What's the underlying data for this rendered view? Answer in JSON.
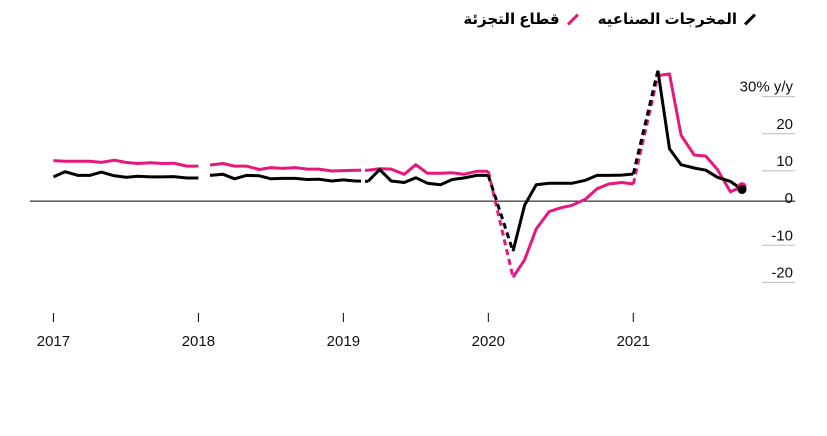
{
  "chart_data": {
    "type": "line",
    "legend": [
      {
        "label": "المخرجات الصناعيه",
        "color": "#000000"
      },
      {
        "label": "قطاع التجزئة",
        "color": "#e8177e"
      }
    ],
    "y_ticks": [
      {
        "value": 30,
        "label": "30% y/y"
      },
      {
        "value": 20,
        "label": "20"
      },
      {
        "value": 10,
        "label": "10"
      },
      {
        "value": 0,
        "label": "0"
      },
      {
        "value": -10,
        "label": "-10"
      },
      {
        "value": -20,
        "label": "-20"
      }
    ],
    "x_ticks": [
      {
        "value": 2017.0,
        "label": "2017"
      },
      {
        "value": 2018.0,
        "label": "2018"
      },
      {
        "value": 2019.0,
        "label": "2019"
      },
      {
        "value": 2020.0,
        "label": "2020"
      },
      {
        "value": 2021.0,
        "label": "2021"
      }
    ],
    "xlim": [
      2016.99,
      2021.75
    ],
    "ylim": [
      -25,
      35
    ],
    "series": [
      {
        "name": "المخرجات الصناعيه",
        "color": "#000000",
        "segments": [
          {
            "style": "solid",
            "points": [
              [
                2017.0,
                6.5
              ],
              [
                2017.08,
                7.9
              ],
              [
                2017.17,
                6.9
              ],
              [
                2017.25,
                6.9
              ],
              [
                2017.33,
                7.8
              ],
              [
                2017.42,
                6.8
              ],
              [
                2017.5,
                6.4
              ],
              [
                2017.58,
                6.7
              ],
              [
                2017.67,
                6.5
              ],
              [
                2017.75,
                6.5
              ],
              [
                2017.83,
                6.6
              ],
              [
                2017.92,
                6.2
              ],
              [
                2018.0,
                6.2
              ]
            ]
          },
          {
            "style": "solid",
            "points": [
              [
                2018.08,
                6.9
              ],
              [
                2018.17,
                7.2
              ],
              [
                2018.25,
                6.0
              ],
              [
                2018.33,
                6.9
              ],
              [
                2018.42,
                6.8
              ],
              [
                2018.5,
                6.0
              ],
              [
                2018.58,
                6.1
              ],
              [
                2018.67,
                6.1
              ],
              [
                2018.75,
                5.8
              ],
              [
                2018.83,
                5.9
              ],
              [
                2018.92,
                5.4
              ],
              [
                2019.0,
                5.7
              ],
              [
                2019.08,
                5.4
              ]
            ]
          },
          {
            "style": "dashed",
            "points": [
              [
                2019.08,
                5.4
              ],
              [
                2019.17,
                5.3
              ]
            ]
          },
          {
            "style": "solid",
            "points": [
              [
                2019.17,
                5.3
              ],
              [
                2019.25,
                8.5
              ],
              [
                2019.33,
                5.4
              ],
              [
                2019.42,
                5.0
              ],
              [
                2019.5,
                6.3
              ],
              [
                2019.58,
                4.8
              ],
              [
                2019.67,
                4.4
              ],
              [
                2019.75,
                5.8
              ],
              [
                2019.83,
                6.2
              ],
              [
                2019.92,
                6.9
              ],
              [
                2020.0,
                6.9
              ]
            ]
          },
          {
            "style": "dashed",
            "points": [
              [
                2020.0,
                6.9
              ],
              [
                2020.17,
                -13.5
              ]
            ]
          },
          {
            "style": "solid",
            "points": [
              [
                2020.17,
                -13.5
              ],
              [
                2020.25,
                -1.1
              ],
              [
                2020.33,
                4.4
              ],
              [
                2020.42,
                4.8
              ],
              [
                2020.5,
                4.8
              ],
              [
                2020.58,
                4.8
              ],
              [
                2020.67,
                5.6
              ],
              [
                2020.75,
                6.9
              ],
              [
                2020.83,
                6.9
              ],
              [
                2020.92,
                7.0
              ],
              [
                2021.0,
                7.3
              ]
            ]
          },
          {
            "style": "dashed",
            "points": [
              [
                2021.0,
                7.3
              ],
              [
                2021.17,
                35.1
              ]
            ]
          },
          {
            "style": "solid",
            "points": [
              [
                2021.17,
                35.1
              ],
              [
                2021.25,
                14.1
              ],
              [
                2021.33,
                9.8
              ],
              [
                2021.42,
                8.9
              ],
              [
                2021.5,
                8.3
              ],
              [
                2021.58,
                6.4
              ],
              [
                2021.67,
                5.3
              ],
              [
                2021.75,
                3.1
              ]
            ]
          }
        ]
      },
      {
        "name": "قطاع التجزئة",
        "color": "#e8177e",
        "segments": [
          {
            "style": "solid",
            "points": [
              [
                2017.0,
                10.9
              ],
              [
                2017.08,
                10.7
              ],
              [
                2017.17,
                10.7
              ],
              [
                2017.25,
                10.7
              ],
              [
                2017.33,
                10.4
              ],
              [
                2017.42,
                11.0
              ],
              [
                2017.5,
                10.4
              ],
              [
                2017.58,
                10.1
              ],
              [
                2017.67,
                10.3
              ],
              [
                2017.75,
                10.1
              ],
              [
                2017.83,
                10.2
              ],
              [
                2017.92,
                9.4
              ],
              [
                2018.0,
                9.4
              ]
            ]
          },
          {
            "style": "solid",
            "points": [
              [
                2018.08,
                9.7
              ],
              [
                2018.17,
                10.1
              ],
              [
                2018.25,
                9.4
              ],
              [
                2018.33,
                9.4
              ],
              [
                2018.42,
                8.5
              ],
              [
                2018.5,
                9.0
              ],
              [
                2018.58,
                8.8
              ],
              [
                2018.67,
                9.0
              ],
              [
                2018.75,
                8.6
              ],
              [
                2018.83,
                8.6
              ],
              [
                2018.92,
                8.1
              ],
              [
                2019.0,
                8.2
              ],
              [
                2019.08,
                8.3
              ]
            ]
          },
          {
            "style": "dashed",
            "points": [
              [
                2019.08,
                8.3
              ],
              [
                2019.17,
                8.3
              ]
            ]
          },
          {
            "style": "solid",
            "points": [
              [
                2019.17,
                8.3
              ],
              [
                2019.25,
                8.7
              ],
              [
                2019.33,
                8.6
              ],
              [
                2019.42,
                7.2
              ],
              [
                2019.5,
                9.8
              ],
              [
                2019.58,
                7.5
              ],
              [
                2019.67,
                7.5
              ],
              [
                2019.75,
                7.6
              ],
              [
                2019.83,
                7.2
              ],
              [
                2019.92,
                8.0
              ],
              [
                2020.0,
                8.0
              ]
            ]
          },
          {
            "style": "dashed",
            "points": [
              [
                2020.0,
                8.0
              ],
              [
                2020.17,
                -20.5
              ]
            ]
          },
          {
            "style": "solid",
            "points": [
              [
                2020.17,
                -20.5
              ],
              [
                2020.25,
                -15.8
              ],
              [
                2020.33,
                -7.5
              ],
              [
                2020.42,
                -2.8
              ],
              [
                2020.5,
                -1.8
              ],
              [
                2020.58,
                -1.1
              ],
              [
                2020.67,
                0.5
              ],
              [
                2020.75,
                3.3
              ],
              [
                2020.83,
                4.6
              ],
              [
                2020.92,
                5.0
              ],
              [
                2021.0,
                4.6
              ]
            ]
          },
          {
            "style": "dashed",
            "points": [
              [
                2021.0,
                4.6
              ],
              [
                2021.17,
                33.8
              ]
            ]
          },
          {
            "style": "solid",
            "points": [
              [
                2021.17,
                33.8
              ],
              [
                2021.25,
                34.2
              ],
              [
                2021.33,
                17.7
              ],
              [
                2021.42,
                12.4
              ],
              [
                2021.5,
                12.1
              ],
              [
                2021.58,
                8.5
              ],
              [
                2021.67,
                2.5
              ],
              [
                2021.75,
                3.9
              ]
            ]
          }
        ]
      }
    ]
  }
}
